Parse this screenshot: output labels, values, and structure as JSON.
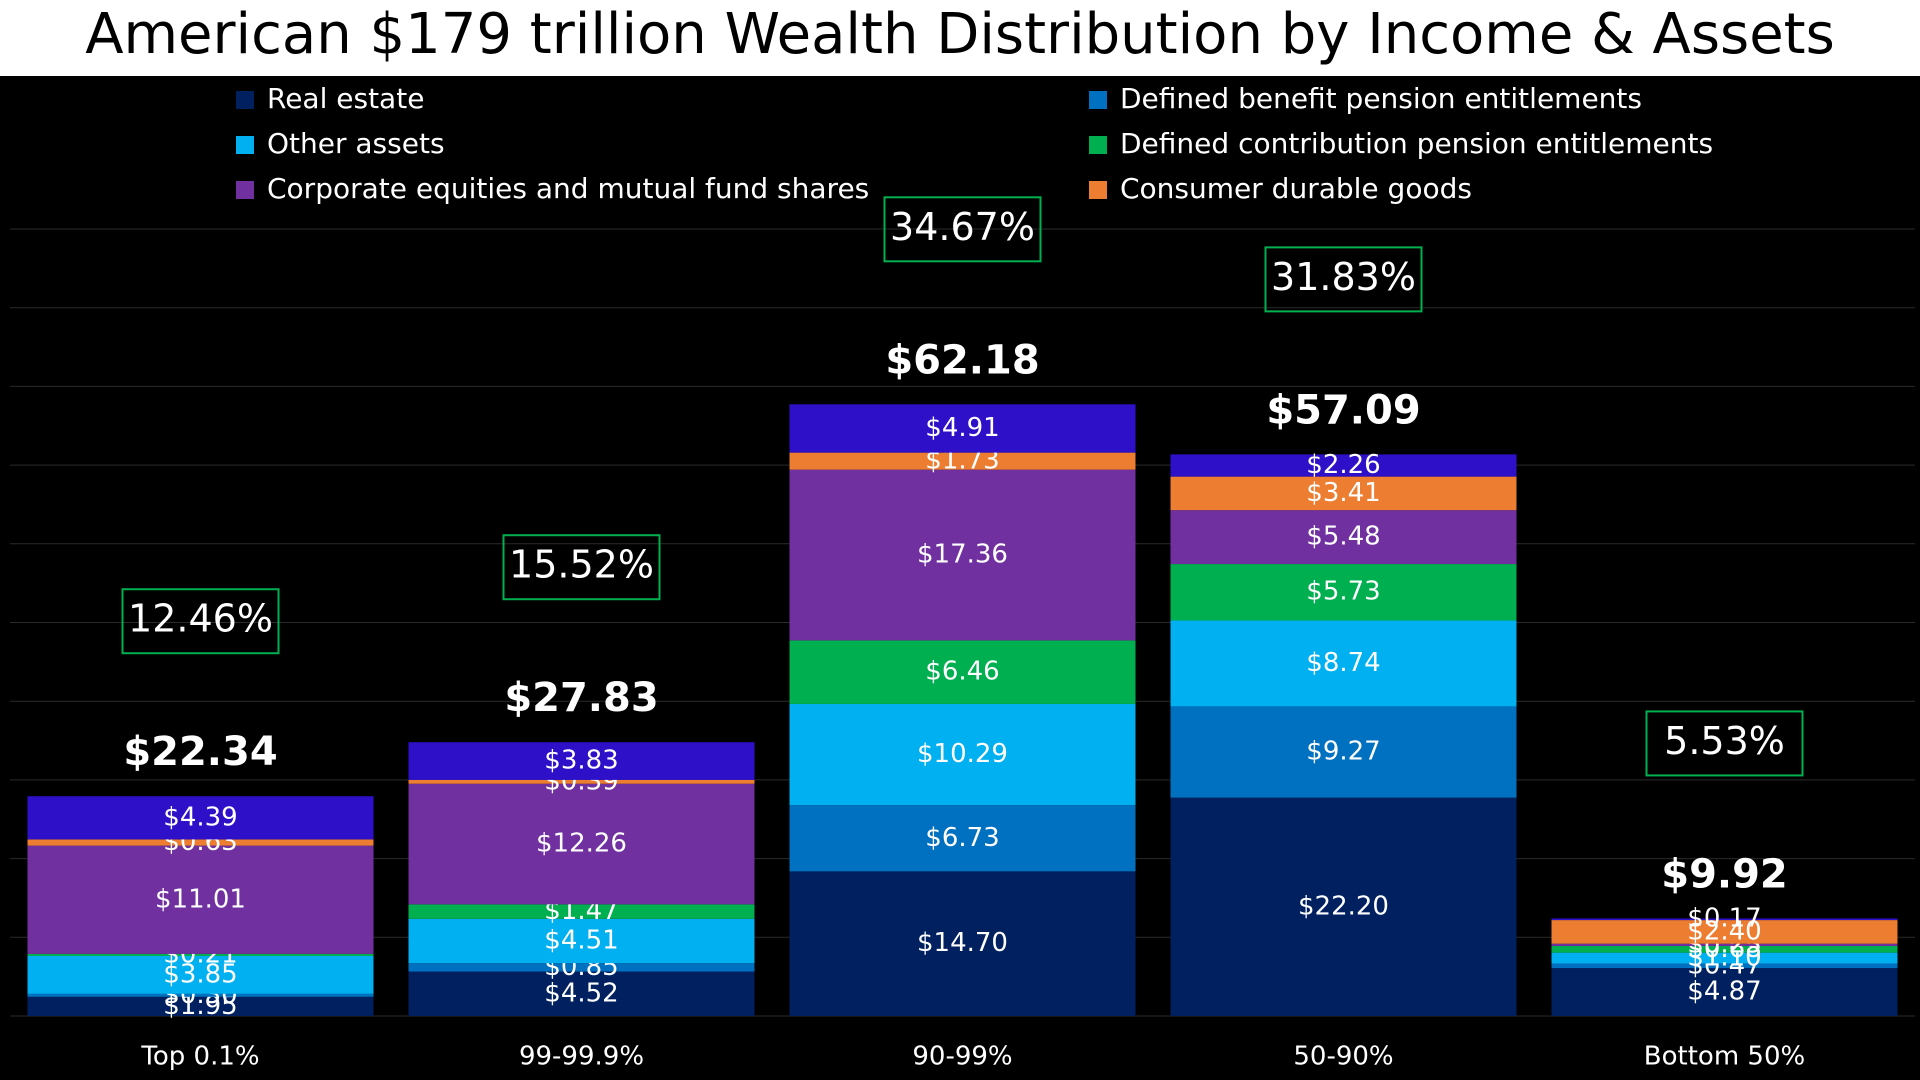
{
  "chart_data": {
    "type": "stacked_bar",
    "title": "American $179 trillion Wealth Distribution by Income & Assets",
    "categories": [
      "Top 0.1%",
      "99-99.9%",
      "90-99%",
      "50-90%",
      "Bottom 50%"
    ],
    "series": [
      {
        "name": "Real estate",
        "color": "#002060",
        "values": [
          1.95,
          4.52,
          14.7,
          22.2,
          4.87
        ],
        "value_labels": [
          "$1.95",
          "$4.52",
          "$14.70",
          "$22.20",
          "$4.87"
        ]
      },
      {
        "name": "Defined benefit pension entitlements",
        "color": "#0070c0",
        "values": [
          0.3,
          0.85,
          6.73,
          9.27,
          0.47
        ],
        "value_labels": [
          "$0.30",
          "$0.85",
          "$6.73",
          "$9.27",
          "$0.47"
        ]
      },
      {
        "name": "Other assets",
        "color": "#00b0f0",
        "values": [
          3.85,
          4.51,
          10.29,
          8.74,
          1.1
        ],
        "value_labels": [
          "$3.85",
          "$4.51",
          "$10.29",
          "$8.74",
          "$1.10"
        ]
      },
      {
        "name": "Defined contribution pension entitlements",
        "color": "#00b050",
        "values": [
          0.21,
          1.47,
          6.46,
          5.73,
          0.68
        ],
        "value_labels": [
          "$0.21",
          "$1.47",
          "$6.46",
          "$5.73",
          "$0.68"
        ]
      },
      {
        "name": "Corporate equities and mutual fund shares",
        "color": "#7030a0",
        "values": [
          11.01,
          12.26,
          17.36,
          5.48,
          0.23
        ],
        "value_labels": [
          "$11.01",
          "$12.26",
          "$17.36",
          "$5.48",
          "$0.23"
        ]
      },
      {
        "name": "Consumer durable goods",
        "color": "#ed7d31",
        "values": [
          0.63,
          0.39,
          1.73,
          3.41,
          2.4
        ],
        "value_labels": [
          "$0.63",
          "$0.39",
          "$1.73",
          "$3.41",
          "$2.40"
        ]
      },
      {
        "color": "#2e10c8",
        "values": [
          4.39,
          3.83,
          4.91,
          2.26,
          0.17
        ],
        "value_labels": [
          "$4.39",
          "$3.83",
          "$4.91",
          "$2.26",
          "$0.17"
        ]
      }
    ],
    "totals": [
      22.34,
      27.83,
      62.18,
      57.09,
      9.92
    ],
    "total_labels": [
      "$22.34",
      "$27.83",
      "$62.18",
      "$57.09",
      "$9.92"
    ],
    "shares": [
      12.46,
      15.52,
      34.67,
      31.83,
      5.53
    ],
    "share_labels": [
      "12.46%",
      "15.52%",
      "34.67%",
      "31.83%",
      "5.53%"
    ],
    "ylim": [
      0,
      80
    ],
    "yticks": [
      0,
      8,
      16,
      24,
      32,
      40,
      48,
      56,
      64,
      72,
      80
    ],
    "grid": true
  }
}
